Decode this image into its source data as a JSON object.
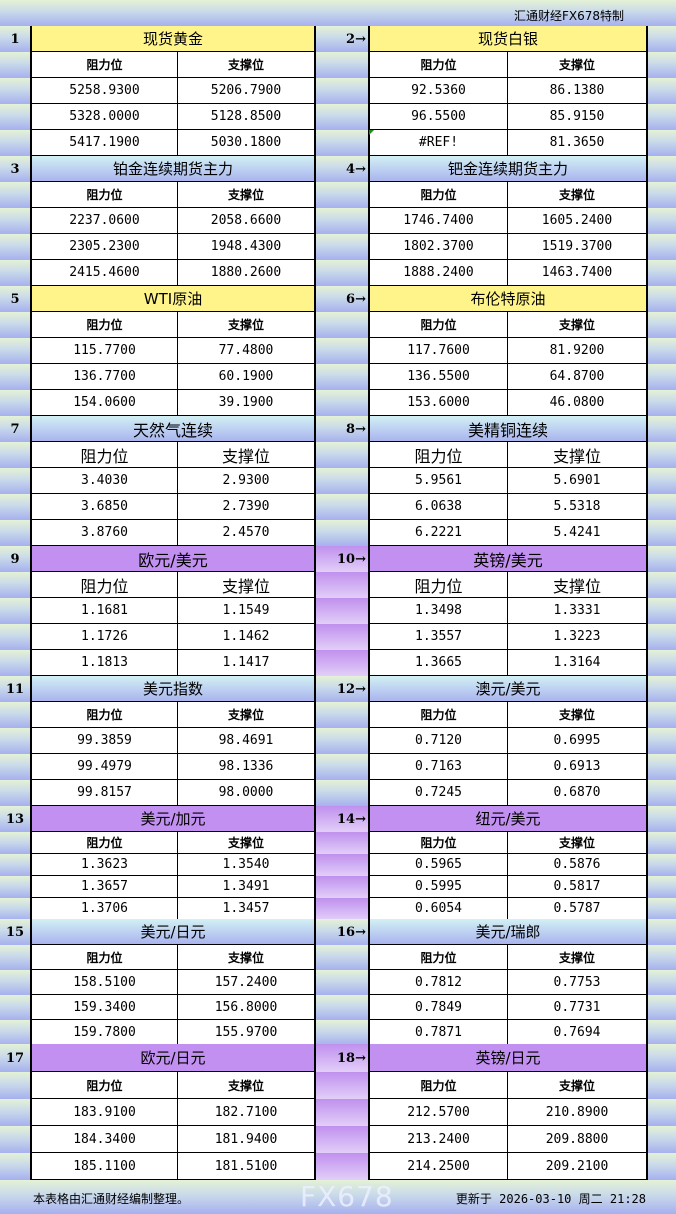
{
  "title": "汇通财经FX678特制",
  "col_resist": "阻力位",
  "col_support": "支撑位",
  "colors": {
    "yellow": "#fff48a",
    "blue": "#aab4ee",
    "purple": "#c290f0"
  },
  "sections": [
    {
      "style": "yellow",
      "left": {
        "num": "1",
        "name": "现货黄金",
        "rows": [
          [
            "5258.9300",
            "5206.7900"
          ],
          [
            "5328.0000",
            "5128.8500"
          ],
          [
            "5417.1900",
            "5030.1800"
          ]
        ]
      },
      "right": {
        "num": "2→",
        "name": "现货白银",
        "rows": [
          [
            "92.5360",
            "86.1380"
          ],
          [
            "96.5500",
            "85.9150"
          ],
          [
            "#REF!",
            "81.3650"
          ]
        ]
      }
    },
    {
      "style": "blue",
      "left": {
        "num": "3",
        "name": "铂金连续期货主力",
        "rows": [
          [
            "2237.0600",
            "2058.6600"
          ],
          [
            "2305.2300",
            "1948.4300"
          ],
          [
            "2415.4600",
            "1880.2600"
          ]
        ]
      },
      "right": {
        "num": "4→",
        "name": "钯金连续期货主力",
        "rows": [
          [
            "1746.7400",
            "1605.2400"
          ],
          [
            "1802.3700",
            "1519.3700"
          ],
          [
            "1888.2400",
            "1463.7400"
          ]
        ]
      }
    },
    {
      "style": "yellow",
      "left": {
        "num": "5",
        "name": "WTI原油",
        "rows": [
          [
            "115.7700",
            "77.4800"
          ],
          [
            "136.7700",
            "60.1900"
          ],
          [
            "154.0600",
            "39.1900"
          ]
        ]
      },
      "right": {
        "num": "6→",
        "name": "布伦特原油",
        "rows": [
          [
            "117.7600",
            "81.9200"
          ],
          [
            "136.5500",
            "64.8700"
          ],
          [
            "153.6000",
            "46.0800"
          ]
        ]
      }
    },
    {
      "style": "blue",
      "big": true,
      "left": {
        "num": "7",
        "name": "天然气连续",
        "rows": [
          [
            "3.4030",
            "2.9300"
          ],
          [
            "3.6850",
            "2.7390"
          ],
          [
            "3.8760",
            "2.4570"
          ]
        ]
      },
      "right": {
        "num": "8→",
        "name": "美精铜连续",
        "rows": [
          [
            "5.9561",
            "5.6901"
          ],
          [
            "6.0638",
            "5.5318"
          ],
          [
            "6.2221",
            "5.4241"
          ]
        ]
      }
    },
    {
      "style": "purple",
      "big": true,
      "left": {
        "num": "9",
        "name": "欧元/美元",
        "rows": [
          [
            "1.1681",
            "1.1549"
          ],
          [
            "1.1726",
            "1.1462"
          ],
          [
            "1.1813",
            "1.1417"
          ]
        ]
      },
      "right": {
        "num": "10→",
        "name": "英镑/美元",
        "rows": [
          [
            "1.3498",
            "1.3331"
          ],
          [
            "1.3557",
            "1.3223"
          ],
          [
            "1.3665",
            "1.3164"
          ]
        ]
      }
    },
    {
      "style": "blue",
      "left": {
        "num": "11",
        "name": "美元指数",
        "rows": [
          [
            "99.3859",
            "98.4691"
          ],
          [
            "99.4979",
            "98.1336"
          ],
          [
            "99.8157",
            "98.0000"
          ]
        ]
      },
      "right": {
        "num": "12→",
        "name": "澳元/美元",
        "rows": [
          [
            "0.7120",
            "0.6995"
          ],
          [
            "0.7163",
            "0.6913"
          ],
          [
            "0.7245",
            "0.6870"
          ]
        ]
      }
    },
    {
      "style": "purple",
      "left": {
        "num": "13",
        "name": "美元/加元",
        "rows": [
          [
            "1.3623",
            "1.3540"
          ],
          [
            "1.3657",
            "1.3491"
          ],
          [
            "1.3706",
            "1.3457"
          ]
        ]
      },
      "right": {
        "num": "14→",
        "name": "纽元/美元",
        "rows": [
          [
            "0.5965",
            "0.5876"
          ],
          [
            "0.5995",
            "0.5817"
          ],
          [
            "0.6054",
            "0.5787"
          ]
        ]
      }
    },
    {
      "style": "blue",
      "left": {
        "num": "15",
        "name": "美元/日元",
        "rows": [
          [
            "158.5100",
            "157.2400"
          ],
          [
            "159.3400",
            "156.8000"
          ],
          [
            "159.7800",
            "155.9700"
          ]
        ]
      },
      "right": {
        "num": "16→",
        "name": "美元/瑞郎",
        "rows": [
          [
            "0.7812",
            "0.7753"
          ],
          [
            "0.7849",
            "0.7731"
          ],
          [
            "0.7871",
            "0.7694"
          ]
        ]
      }
    },
    {
      "style": "purple",
      "left": {
        "num": "17",
        "name": "欧元/日元",
        "rows": [
          [
            "183.9100",
            "182.7100"
          ],
          [
            "184.3400",
            "181.9400"
          ],
          [
            "185.1100",
            "181.5100"
          ]
        ]
      },
      "right": {
        "num": "18→",
        "name": "英镑/日元",
        "rows": [
          [
            "212.5700",
            "210.8900"
          ],
          [
            "213.2400",
            "209.8800"
          ],
          [
            "214.2500",
            "209.2100"
          ]
        ]
      }
    }
  ],
  "footer": {
    "note": "本表格由汇通财经编制整理。",
    "updated_label": "更新于",
    "date": "2026-03-10",
    "weekday": "周二",
    "time": "21:28"
  },
  "watermark": "FX678"
}
